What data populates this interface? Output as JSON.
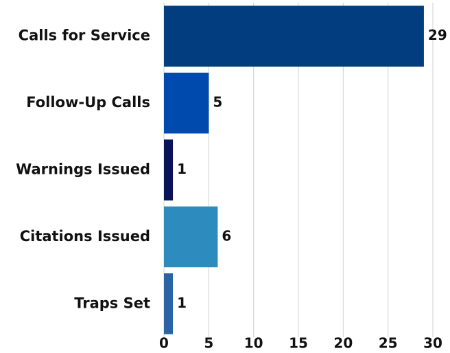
{
  "chart_data": {
    "type": "bar",
    "orientation": "horizontal",
    "categories": [
      "Calls for Service",
      "Follow-Up Calls",
      "Warnings Issued",
      "Citations Issued",
      "Traps Set"
    ],
    "values": [
      29,
      5,
      1,
      6,
      1
    ],
    "colors": [
      "#023e7f",
      "#004aad",
      "#0a1358",
      "#2e8bbd",
      "#2a64a4"
    ],
    "xlim": [
      0,
      30
    ],
    "xticks": [
      0,
      5,
      10,
      15,
      20,
      25,
      30
    ],
    "grid": true
  }
}
